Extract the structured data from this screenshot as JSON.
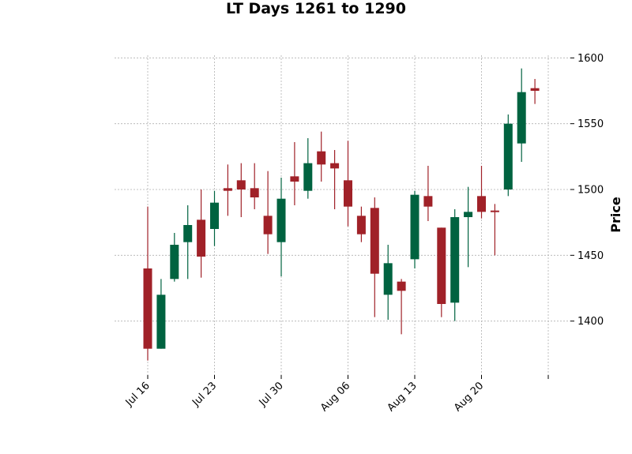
{
  "chart_data": {
    "type": "candlestick",
    "title": "LT Days 1261 to 1290",
    "ylabel": "Price",
    "ylim": [
      1359,
      1602
    ],
    "yticks": [
      1400,
      1450,
      1500,
      1550,
      1600
    ],
    "grid": true,
    "colors": {
      "up": "#006340",
      "down": "#a02128",
      "grid": "#b0b0b0"
    },
    "x_tick_labels": [
      "Jul 16",
      "Jul 23",
      "Jul 30",
      "Aug 06",
      "Aug 13",
      "Aug 20",
      ""
    ],
    "x_tick_positions": [
      0,
      5,
      10,
      15,
      20,
      25,
      30
    ],
    "series": [
      {
        "date": "Jul 16",
        "open": 1440,
        "high": 1487,
        "low": 1370,
        "close": 1379
      },
      {
        "date": "Jul 17",
        "open": 1379,
        "high": 1432,
        "low": 1379,
        "close": 1420
      },
      {
        "date": "Jul 18",
        "open": 1432,
        "high": 1467,
        "low": 1430,
        "close": 1458
      },
      {
        "date": "Jul 19",
        "open": 1460,
        "high": 1488,
        "low": 1432,
        "close": 1473
      },
      {
        "date": "Jul 20",
        "open": 1477,
        "high": 1500,
        "low": 1433,
        "close": 1449
      },
      {
        "date": "Jul 23",
        "open": 1470,
        "high": 1499,
        "low": 1457,
        "close": 1490
      },
      {
        "date": "Jul 24",
        "open": 1501,
        "high": 1519,
        "low": 1480,
        "close": 1499
      },
      {
        "date": "Jul 25",
        "open": 1507,
        "high": 1520,
        "low": 1479,
        "close": 1500
      },
      {
        "date": "Jul 26",
        "open": 1501,
        "high": 1520,
        "low": 1485,
        "close": 1494
      },
      {
        "date": "Jul 27",
        "open": 1480,
        "high": 1514,
        "low": 1451,
        "close": 1466
      },
      {
        "date": "Jul 30",
        "open": 1460,
        "high": 1509,
        "low": 1434,
        "close": 1493
      },
      {
        "date": "Jul 31",
        "open": 1510,
        "high": 1536,
        "low": 1488,
        "close": 1506
      },
      {
        "date": "Aug 01",
        "open": 1499,
        "high": 1539,
        "low": 1493,
        "close": 1520
      },
      {
        "date": "Aug 02",
        "open": 1529,
        "high": 1544,
        "low": 1506,
        "close": 1519
      },
      {
        "date": "Aug 03",
        "open": 1520,
        "high": 1530,
        "low": 1485,
        "close": 1516
      },
      {
        "date": "Aug 06",
        "open": 1507,
        "high": 1537,
        "low": 1472,
        "close": 1487
      },
      {
        "date": "Aug 07",
        "open": 1480,
        "high": 1487,
        "low": 1460,
        "close": 1466
      },
      {
        "date": "Aug 08",
        "open": 1486,
        "high": 1494,
        "low": 1403,
        "close": 1436
      },
      {
        "date": "Aug 09",
        "open": 1420,
        "high": 1458,
        "low": 1401,
        "close": 1444
      },
      {
        "date": "Aug 10",
        "open": 1430,
        "high": 1432,
        "low": 1390,
        "close": 1423
      },
      {
        "date": "Aug 13",
        "open": 1447,
        "high": 1499,
        "low": 1440,
        "close": 1496
      },
      {
        "date": "Aug 14",
        "open": 1495,
        "high": 1518,
        "low": 1476,
        "close": 1487
      },
      {
        "date": "Aug 15",
        "open": 1471,
        "high": 1471,
        "low": 1403,
        "close": 1413
      },
      {
        "date": "Aug 16",
        "open": 1414,
        "high": 1485,
        "low": 1400,
        "close": 1479
      },
      {
        "date": "Aug 17",
        "open": 1479,
        "high": 1502,
        "low": 1441,
        "close": 1483
      },
      {
        "date": "Aug 20",
        "open": 1495,
        "high": 1518,
        "low": 1478,
        "close": 1483
      },
      {
        "date": "Aug 21",
        "open": 1484,
        "high": 1489,
        "low": 1450,
        "close": 1483
      },
      {
        "date": "Aug 22",
        "open": 1500,
        "high": 1557,
        "low": 1495,
        "close": 1550
      },
      {
        "date": "Aug 23",
        "open": 1535,
        "high": 1592,
        "low": 1521,
        "close": 1574
      },
      {
        "date": "Aug 24",
        "open": 1577,
        "high": 1584,
        "low": 1565,
        "close": 1575
      }
    ]
  }
}
